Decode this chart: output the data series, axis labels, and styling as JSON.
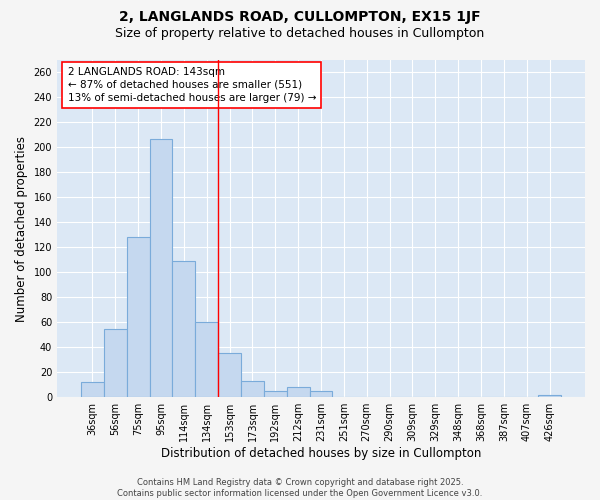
{
  "title": "2, LANGLANDS ROAD, CULLOMPTON, EX15 1JF",
  "subtitle": "Size of property relative to detached houses in Cullompton",
  "xlabel": "Distribution of detached houses by size in Cullompton",
  "ylabel": "Number of detached properties",
  "bar_color": "#c5d8ef",
  "bar_edge_color": "#7aabda",
  "background_color": "#dce8f5",
  "fig_background_color": "#f5f5f5",
  "grid_color": "#ffffff",
  "categories": [
    "36sqm",
    "56sqm",
    "75sqm",
    "95sqm",
    "114sqm",
    "134sqm",
    "153sqm",
    "173sqm",
    "192sqm",
    "212sqm",
    "231sqm",
    "251sqm",
    "270sqm",
    "290sqm",
    "309sqm",
    "329sqm",
    "348sqm",
    "368sqm",
    "387sqm",
    "407sqm",
    "426sqm"
  ],
  "values": [
    12,
    55,
    128,
    207,
    109,
    60,
    35,
    13,
    5,
    8,
    5,
    0,
    0,
    0,
    0,
    0,
    0,
    0,
    0,
    0,
    2
  ],
  "red_line_x": 5.5,
  "annotation_text": "2 LANGLANDS ROAD: 143sqm\n← 87% of detached houses are smaller (551)\n13% of semi-detached houses are larger (79) →",
  "ylim": [
    0,
    270
  ],
  "yticks": [
    0,
    20,
    40,
    60,
    80,
    100,
    120,
    140,
    160,
    180,
    200,
    220,
    240,
    260
  ],
  "title_fontsize": 10,
  "subtitle_fontsize": 9,
  "annotation_fontsize": 7.5,
  "tick_fontsize": 7,
  "label_fontsize": 8.5,
  "footer_fontsize": 6
}
